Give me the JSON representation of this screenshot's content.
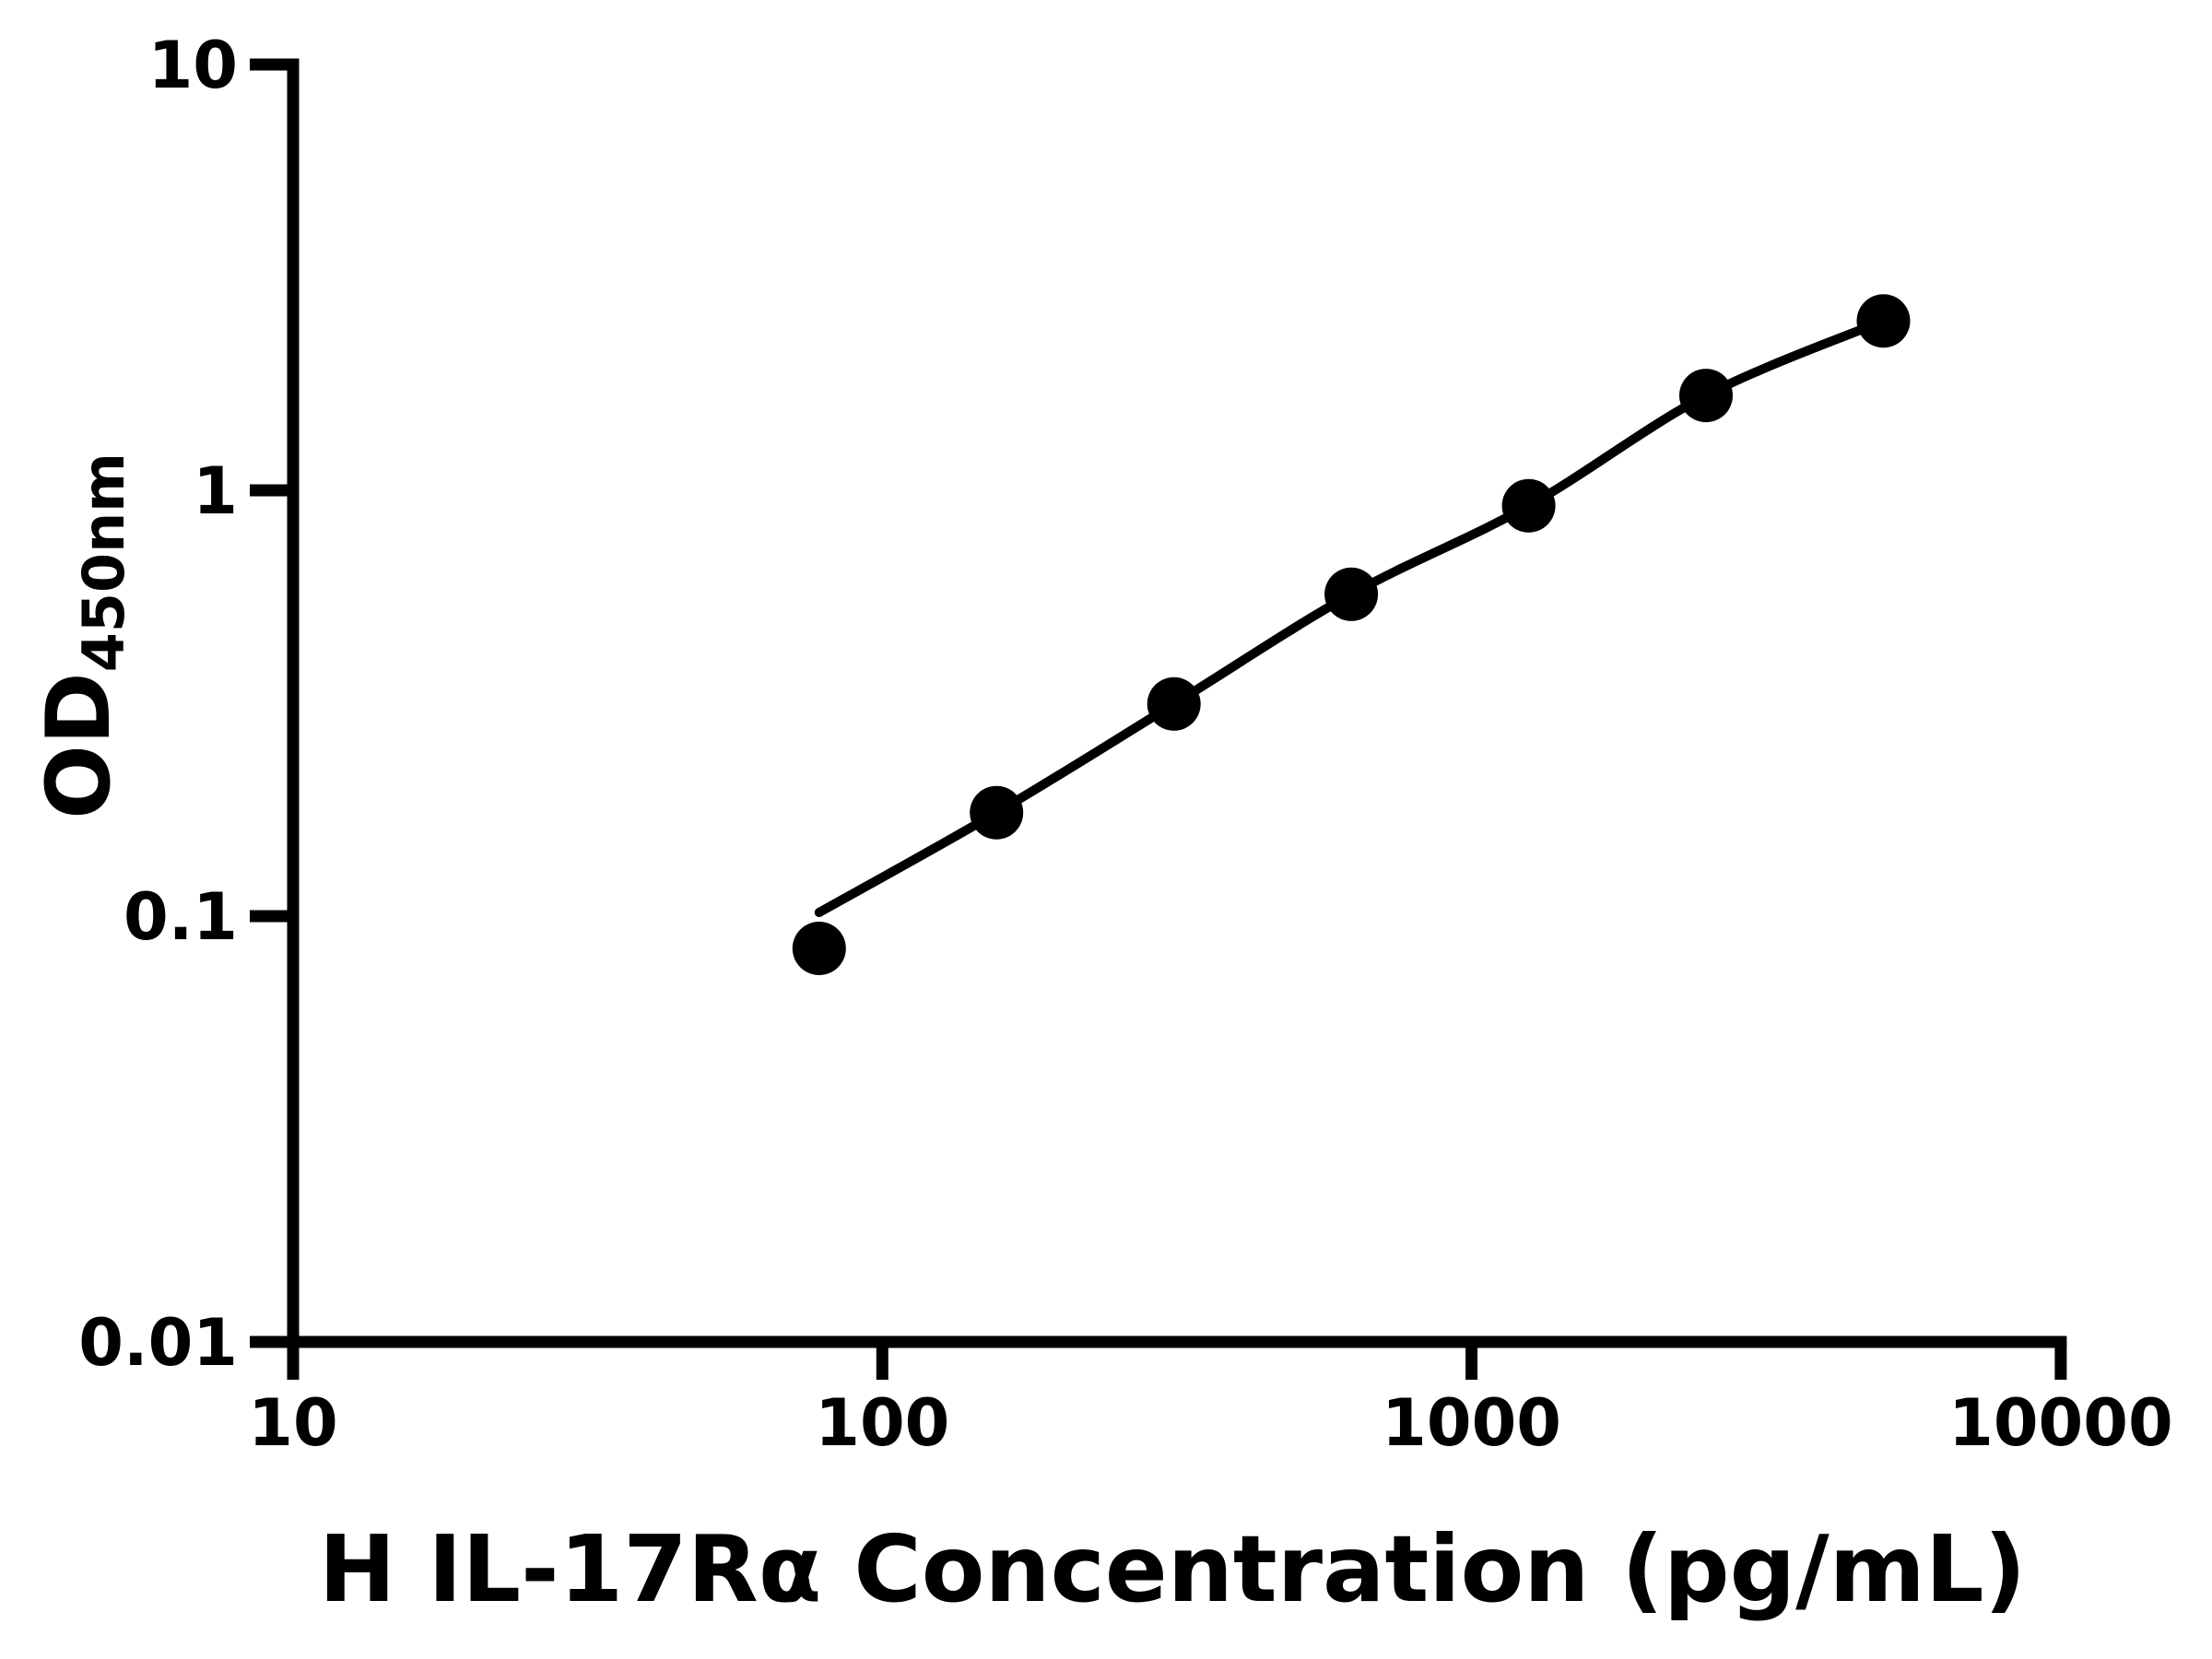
{
  "figure": {
    "background": "#ffffff",
    "ink_color": "#000000"
  },
  "chart_data": {
    "type": "scatter",
    "title": "",
    "xlabel": "H IL-17Rα Concentration (pg/mL)",
    "ylabel_main": "OD",
    "ylabel_sub": "450nm",
    "x_scale": "log",
    "y_scale": "log",
    "xlim": [
      10,
      10000
    ],
    "ylim": [
      0.01,
      10
    ],
    "x_ticks": [
      10,
      100,
      1000,
      10000
    ],
    "x_tick_labels": [
      "10",
      "100",
      "1000",
      "10000"
    ],
    "y_ticks": [
      10,
      1,
      0.1,
      0.01
    ],
    "y_tick_labels": [
      "10",
      "1",
      "0.1",
      "0.01"
    ],
    "grid": false,
    "legend": "none",
    "series": [
      {
        "name": "standard-points",
        "type": "scatter",
        "marker": "filled-circle",
        "color": "#000000",
        "x": [
          78.125,
          156.25,
          312.5,
          625,
          1250,
          2500,
          5000
        ],
        "y": [
          0.084,
          0.175,
          0.315,
          0.57,
          0.92,
          1.67,
          2.5
        ]
      },
      {
        "name": "fit-curve",
        "type": "line",
        "color": "#000000",
        "x": [
          78.125,
          156.25,
          312.5,
          625,
          1250,
          2500,
          5000
        ],
        "y": [
          0.102,
          0.175,
          0.315,
          0.57,
          0.92,
          1.67,
          2.5
        ]
      }
    ]
  }
}
